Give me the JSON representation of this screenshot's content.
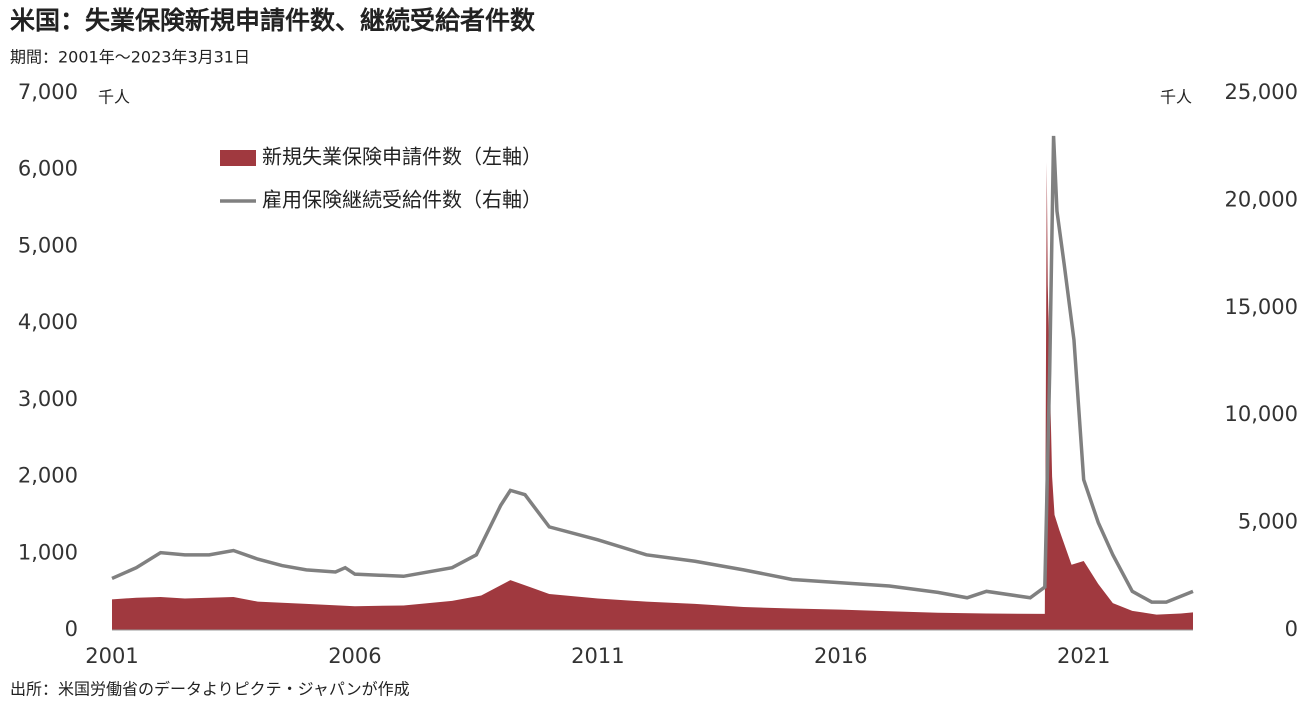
{
  "chart_data": {
    "type": "area-line",
    "title": "米国：失業保険新規申請件数、継続受給者件数",
    "subtitle": "期間：2001年～2023年3月31日",
    "source": "出所：米国労働省のデータよりピクテ・ジャパンが作成",
    "y_unit": "千人",
    "y2_unit": "千人",
    "xlim": [
      2001,
      2023.25
    ],
    "xticks": [
      2001,
      2006,
      2011,
      2016,
      2021
    ],
    "ylim": [
      0,
      7000
    ],
    "yticks": [
      0,
      {
        "value": 1000,
        "label": "1,000"
      },
      {
        "value": 2000,
        "label": "2,000"
      },
      {
        "value": 3000,
        "label": "3,000"
      },
      {
        "value": 4000,
        "label": "4,000"
      },
      {
        "value": 5000,
        "label": "5,000"
      },
      {
        "value": 6000,
        "label": "6,000"
      },
      {
        "value": 7000,
        "label": "7,000"
      }
    ],
    "y2lim": [
      0,
      25000
    ],
    "y2ticks": [
      0,
      {
        "value": 5000,
        "label": "5,000"
      },
      {
        "value": 10000,
        "label": "10,000"
      },
      {
        "value": 15000,
        "label": "15,000"
      },
      {
        "value": 20000,
        "label": "20,000"
      },
      {
        "value": 25000,
        "label": "25,000"
      }
    ],
    "series": [
      {
        "name": "新規失業保険申請件数（左軸）",
        "color": "#a0393f",
        "kind": "area",
        "axis": "y",
        "x": [
          2001,
          2001.5,
          2002,
          2002.5,
          2003,
          2003.5,
          2004,
          2005,
          2006,
          2007,
          2008,
          2008.6,
          2009.2,
          2009.6,
          2010,
          2011,
          2012,
          2013,
          2014,
          2015,
          2016,
          2017,
          2018,
          2019,
          2020.2,
          2020.22,
          2020.24,
          2020.26,
          2020.3,
          2020.35,
          2020.4,
          2020.5,
          2020.75,
          2021,
          2021.1,
          2021.3,
          2021.6,
          2022,
          2022.5,
          2023,
          2023.25
        ],
        "values": [
          400,
          420,
          430,
          410,
          420,
          430,
          370,
          340,
          310,
          320,
          380,
          450,
          650,
          560,
          470,
          410,
          370,
          340,
          300,
          280,
          265,
          245,
          225,
          215,
          210,
          2900,
          6100,
          4500,
          3400,
          2000,
          1500,
          1300,
          850,
          900,
          800,
          600,
          350,
          250,
          200,
          215,
          230
        ]
      },
      {
        "name": "雇用保険継続受給件数（右軸）",
        "color": "#808080",
        "kind": "line",
        "axis": "y2",
        "x": [
          2001,
          2001.5,
          2002,
          2002.5,
          2003,
          2003.5,
          2004,
          2004.5,
          2005,
          2005.6,
          2005.8,
          2006,
          2007,
          2008,
          2008.5,
          2009,
          2009.2,
          2009.5,
          2010,
          2011,
          2012,
          2013,
          2014,
          2015,
          2016,
          2017,
          2018,
          2018.6,
          2019,
          2019.9,
          2020.2,
          2020.3,
          2020.38,
          2020.45,
          2020.6,
          2020.8,
          2021,
          2021.3,
          2021.6,
          2022,
          2022.4,
          2022.7,
          2023.25
        ],
        "values": [
          2400,
          2900,
          3600,
          3500,
          3500,
          3700,
          3300,
          3000,
          2800,
          2700,
          2900,
          2600,
          2500,
          2900,
          3500,
          5800,
          6500,
          6300,
          4800,
          4200,
          3500,
          3200,
          2800,
          2350,
          2200,
          2050,
          1750,
          1500,
          1800,
          1500,
          2000,
          12000,
          23000,
          19500,
          17000,
          13500,
          7000,
          5000,
          3500,
          1800,
          1300,
          1300,
          1800
        ]
      }
    ]
  }
}
